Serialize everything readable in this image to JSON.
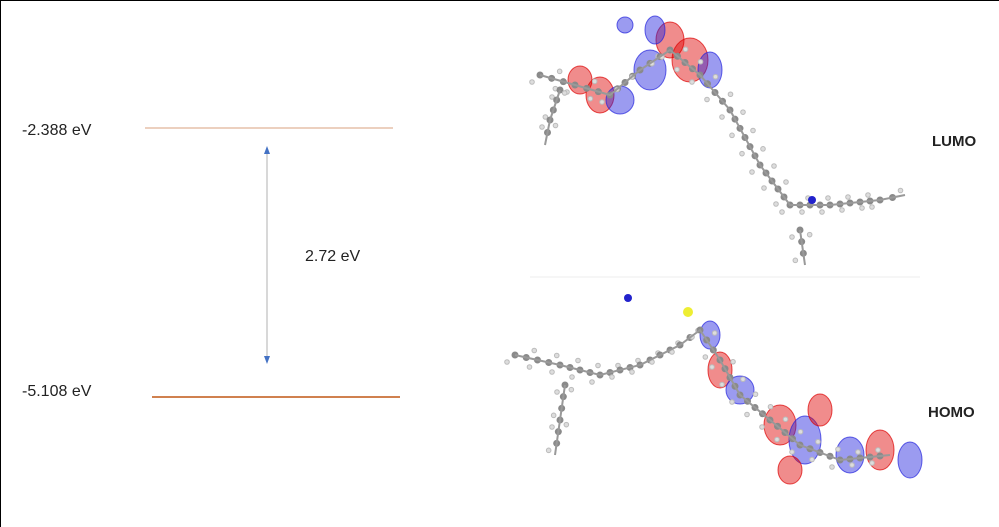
{
  "levels": [
    {
      "energy": "-2.388 eV",
      "orbital": "LUMO"
    },
    {
      "energy": "-5.108 eV",
      "orbital": "HOMO"
    }
  ],
  "gap": "2.72 eV"
}
